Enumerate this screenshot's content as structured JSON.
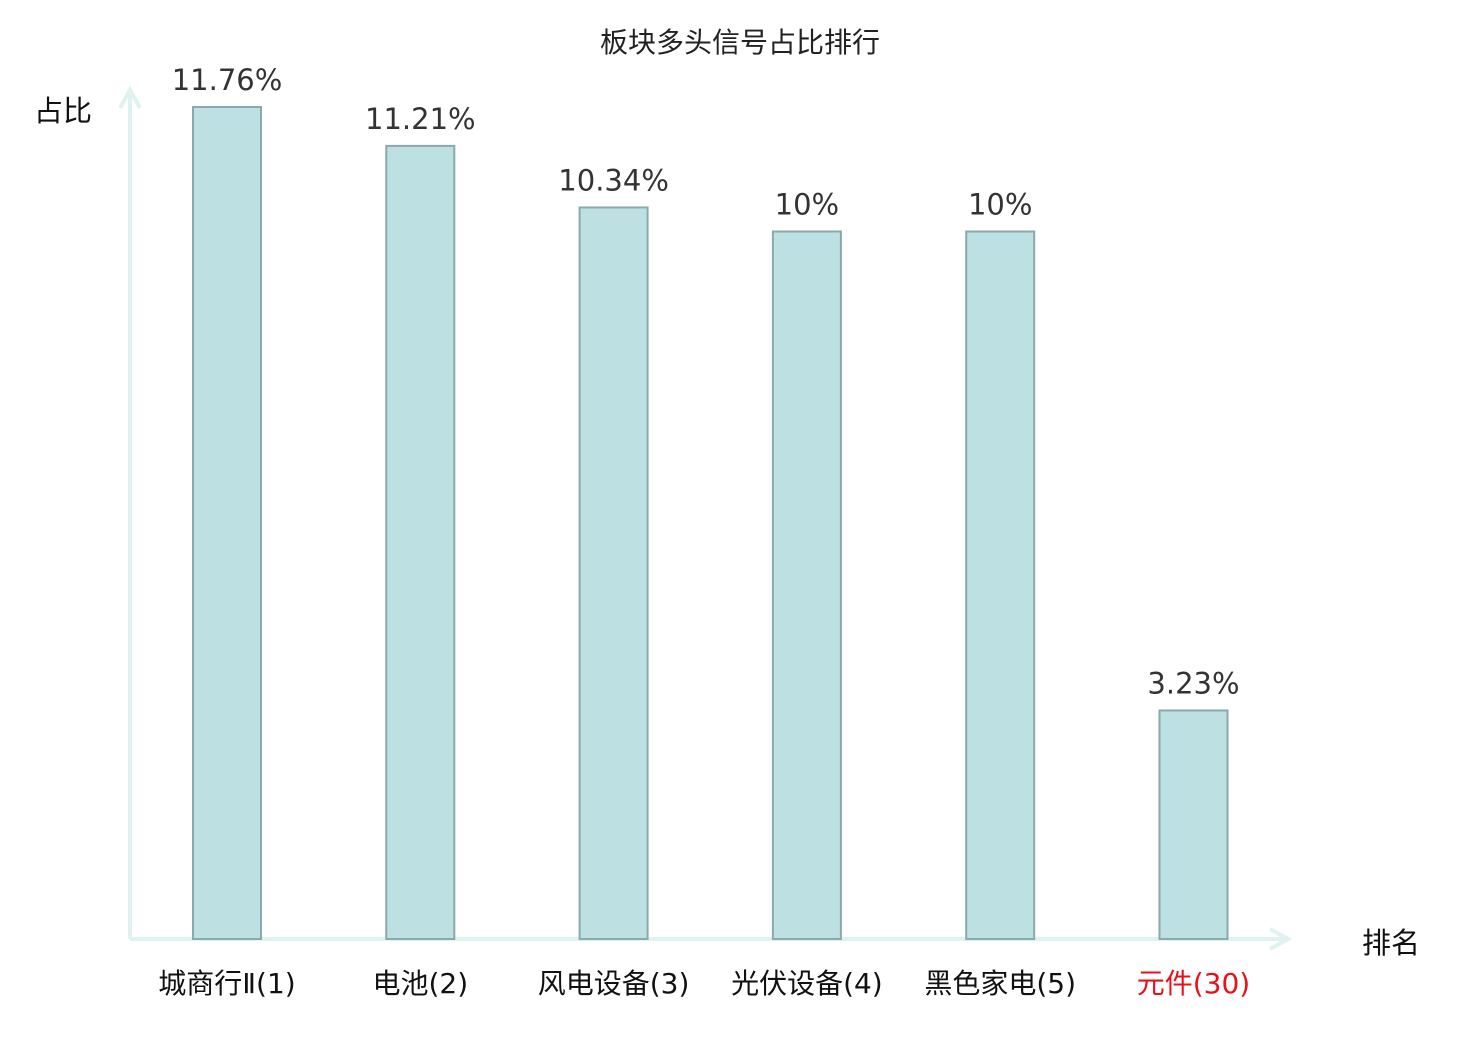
{
  "chart_data": {
    "type": "bar",
    "title": "板块多头信号占比排行",
    "ylabel": "占比",
    "xlabel": "排名",
    "categories": [
      "城商行Ⅱ(1)",
      "电池(2)",
      "风电设备(3)",
      "光伏设备(4)",
      "黑色家电(5)",
      "元件(30)"
    ],
    "values": [
      11.76,
      11.21,
      10.34,
      10,
      10,
      3.23
    ],
    "data_labels": [
      "11.76%",
      "11.21%",
      "10.34%",
      "10%",
      "10%",
      "3.23%"
    ],
    "highlight_index": 5,
    "ylim": [
      0,
      12
    ],
    "grid": false,
    "colors": {
      "bar_fill": "#bde0e3",
      "bar_stroke": "#8aa9aa",
      "axis": "#dff2f0",
      "label": "#222222",
      "value_label": "#333333",
      "highlight": "#e8101a"
    }
  }
}
